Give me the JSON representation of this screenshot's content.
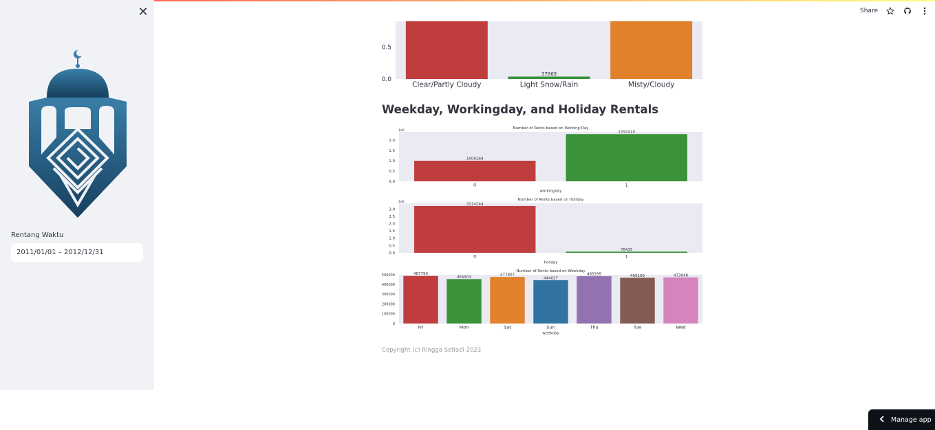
{
  "sidebar": {
    "close_icon": "close-icon",
    "logo_icon": "mosque-kufic-logo",
    "date_label": "Rentang Waktu",
    "date_value": "2011/01/01 – 2012/12/31"
  },
  "toolbar": {
    "share_label": "Share",
    "icons": [
      "star-icon",
      "github-icon",
      "more-vertical-icon"
    ]
  },
  "main": {
    "section_title": "Weekday, Workingday, and Holiday Rentals",
    "copyright": "Copyright (c) Ringga Setiadi 2023"
  },
  "manage_app": {
    "label": "Manage app",
    "icon": "chevron-left-icon"
  },
  "colors": {
    "red": "#c03d3e",
    "green": "#3a923a",
    "orange": "#e1812c",
    "blue": "#3274a1",
    "purple": "#9372b2",
    "brown": "#845b53",
    "pink": "#d684bd",
    "plot_bg": "#eaeaf2"
  },
  "chart_data": [
    {
      "type": "bar",
      "partial": true,
      "categories": [
        "Clear/Partly Cloudy",
        "Light Snow/Rain",
        "Misty/Cloudy"
      ],
      "values": [
        null,
        37869,
        null
      ],
      "value_labels": [
        "",
        "37869",
        ""
      ],
      "yticks": [
        "0.0",
        "0.5"
      ],
      "visible_ylim": [
        0,
        0.9
      ],
      "scale": 1000000
    },
    {
      "type": "bar",
      "title": "Number of Rents based on Working Day",
      "categories": [
        "0",
        "1"
      ],
      "values": [
        1000269,
        2292410
      ],
      "value_labels": [
        "1000269",
        "2292410"
      ],
      "xlabel": "workingday",
      "offset_label": "1e6",
      "yticks": [
        "0.0",
        "0.5",
        "1.0",
        "1.5",
        "2.0"
      ],
      "ylim": [
        0,
        2.4
      ]
    },
    {
      "type": "bar",
      "title": "Number of Rents based on Holiday",
      "categories": [
        "0",
        "1"
      ],
      "values": [
        3214244,
        78435
      ],
      "value_labels": [
        "3214244",
        "78435"
      ],
      "xlabel": "holiday",
      "offset_label": "1e6",
      "yticks": [
        "0.0",
        "0.5",
        "1.0",
        "1.5",
        "2.0",
        "2.5",
        "3.0"
      ],
      "ylim": [
        0,
        3.4
      ]
    },
    {
      "type": "bar",
      "title": "Number of Rents based on Weekday",
      "categories": [
        "Fri",
        "Mon",
        "Sat",
        "Sun",
        "Thu",
        "Tue",
        "Wed"
      ],
      "values": [
        487790,
        455503,
        477807,
        444027,
        485395,
        469109,
        473048
      ],
      "value_labels": [
        "487790",
        "455503",
        "477807",
        "444027",
        "485395",
        "469109",
        "473048"
      ],
      "xlabel": "weekday",
      "yticks": [
        "0",
        "100000",
        "200000",
        "300000",
        "400000",
        "500000"
      ],
      "ylim": [
        0,
        500000
      ]
    }
  ]
}
